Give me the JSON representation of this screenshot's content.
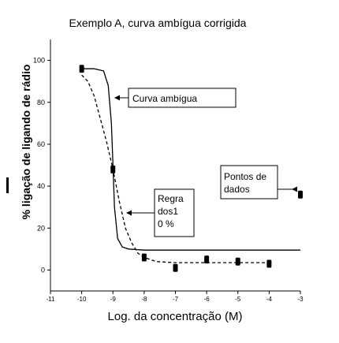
{
  "chart_data": {
    "type": "scatter",
    "title": "Exemplo A, curva ambígua corrigida",
    "xlabel": "Log. da concentração (M)",
    "ylabel": "% ligação de ligando de rádio",
    "xlim": [
      -11,
      -3
    ],
    "ylim": [
      -10,
      110
    ],
    "x_ticks": [
      "-11",
      "-10",
      "-9",
      "-8",
      "-7",
      "-6",
      "-5",
      "-4",
      "-3"
    ],
    "y_ticks": [
      "0",
      "20",
      "40",
      "60",
      "80",
      "100"
    ],
    "grid": false,
    "series": [
      {
        "name": "",
        "style": "points",
        "x": [
          -10,
          -9,
          -8,
          -7,
          -6,
          -5,
          -4,
          -3
        ],
        "y": [
          96,
          48,
          6,
          1,
          5,
          4,
          3,
          36
        ]
      },
      {
        "name": "",
        "style": "solid",
        "x": [
          -10,
          -9.6,
          -9.3,
          -9.15,
          -9.05,
          -9.0,
          -8.95,
          -8.85,
          -8.7,
          -8.5,
          -8.0,
          -7.0,
          -6.0,
          -5.0,
          -4.0,
          -3.0
        ],
        "y": [
          96,
          96,
          95,
          88,
          70,
          50,
          30,
          15,
          11,
          10,
          9.5,
          9.5,
          9.5,
          9.5,
          9.5,
          9.5
        ]
      },
      {
        "name": "",
        "style": "dashed",
        "x": [
          -10,
          -9.8,
          -9.6,
          -9.4,
          -9.2,
          -9.0,
          -8.8,
          -8.6,
          -8.4,
          -8.2,
          -8.0,
          -7.6,
          -7.0,
          -6.0,
          -5.0,
          -4.0
        ],
        "y": [
          93,
          90,
          83,
          72,
          61,
          48,
          33,
          20,
          13,
          8,
          6,
          4,
          3.5,
          3.5,
          3.5,
          3.5
        ]
      }
    ],
    "annotations": [
      {
        "text": "Curva ambígua"
      },
      {
        "lines": [
          "Regra",
          "dos1",
          "0 %"
        ]
      },
      {
        "lines": [
          "Pontos de",
          "dados"
        ]
      }
    ]
  }
}
